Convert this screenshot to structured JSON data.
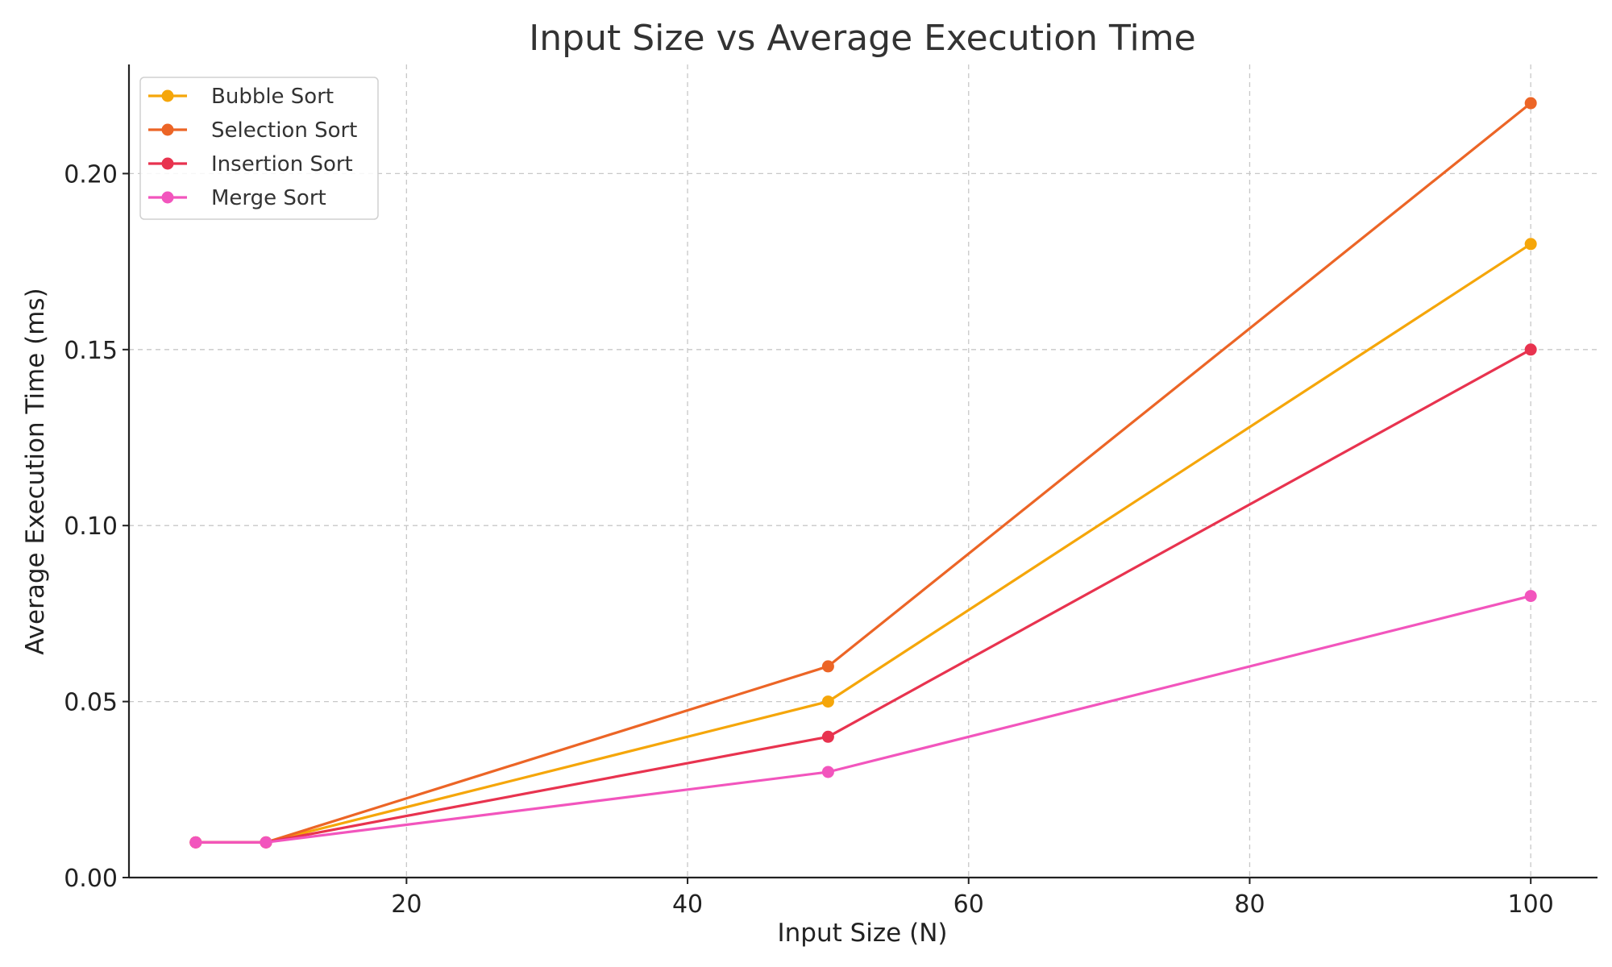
{
  "chart_data": {
    "type": "line",
    "title": "Input Size vs Average Execution Time",
    "xlabel": "Input Size (N)",
    "ylabel": "Average Execution Time (ms)",
    "xlim": [
      0.25,
      104.75
    ],
    "ylim": [
      0,
      0.231
    ],
    "xticks": [
      20,
      40,
      60,
      80,
      100
    ],
    "xtick_labels": [
      "20",
      "40",
      "60",
      "80",
      "100"
    ],
    "yticks": [
      0.0,
      0.05,
      0.1,
      0.15,
      0.2
    ],
    "ytick_labels": [
      "0.00",
      "0.05",
      "0.10",
      "0.15",
      "0.20"
    ],
    "grid": true,
    "legend_position": "top-left",
    "x": [
      5,
      10,
      50,
      100
    ],
    "series": [
      {
        "name": "Bubble Sort",
        "color": "#f5a60a",
        "values": [
          0.01,
          0.01,
          0.05,
          0.18
        ]
      },
      {
        "name": "Selection Sort",
        "color": "#ec6526",
        "values": [
          0.01,
          0.01,
          0.06,
          0.22
        ]
      },
      {
        "name": "Insertion Sort",
        "color": "#e8334f",
        "values": [
          0.01,
          0.01,
          0.04,
          0.15
        ]
      },
      {
        "name": "Merge Sort",
        "color": "#f255bd",
        "values": [
          0.01,
          0.01,
          0.03,
          0.08
        ]
      }
    ]
  }
}
